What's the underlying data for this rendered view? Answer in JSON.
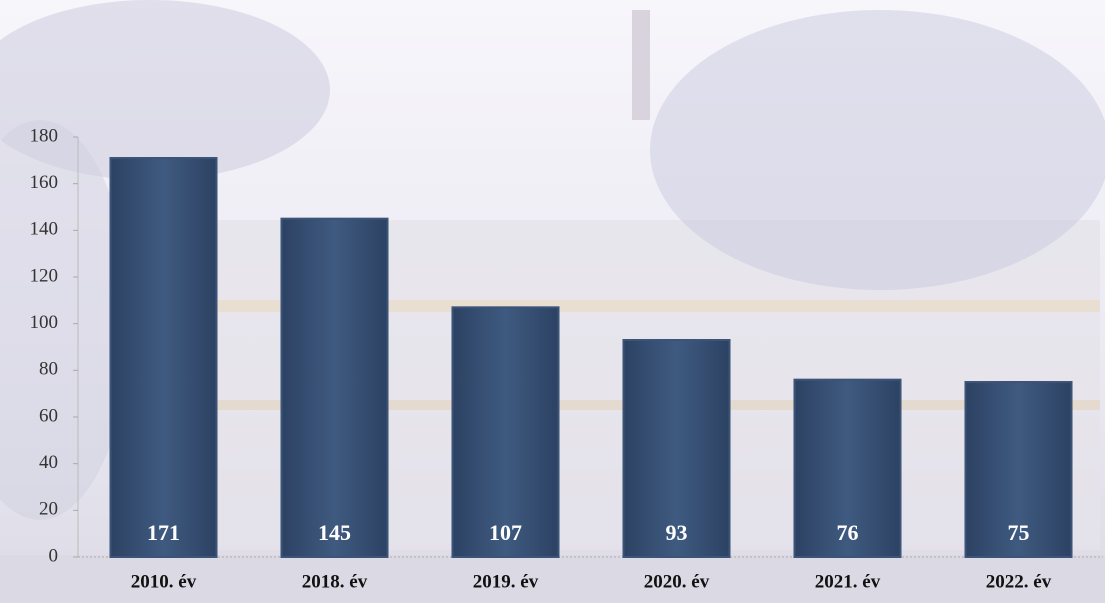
{
  "chart_data": {
    "type": "bar",
    "categories": [
      "2010. év",
      "2018. év",
      "2019. év",
      "2020. év",
      "2021. év",
      "2022. év"
    ],
    "values": [
      171,
      145,
      107,
      93,
      76,
      75
    ],
    "color": "#3b5478",
    "ylim": [
      0,
      180
    ],
    "yticks": [
      0,
      20,
      40,
      60,
      80,
      100,
      120,
      140,
      160,
      180
    ],
    "grid": false
  }
}
